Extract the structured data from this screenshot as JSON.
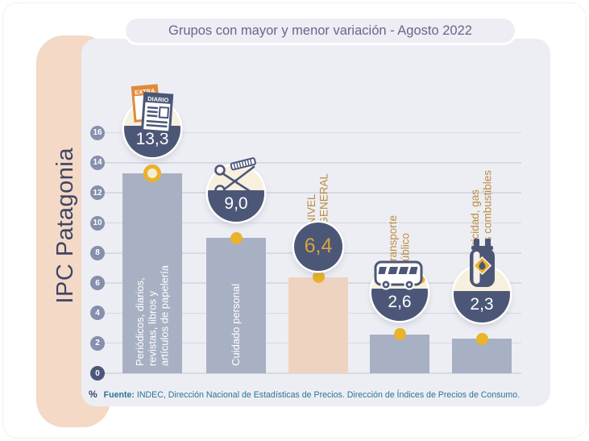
{
  "title": "Grupos con mayor y menor variación - Agosto 2022",
  "sidebar_label": "IPC Patagonia",
  "footer": {
    "percent_symbol": "%",
    "source_label": "Fuente:",
    "source_text": "INDEC, Dirección Nacional de Estadísticas de Precios. Dirección de Índices de Precios de Consumo."
  },
  "colors": {
    "panel_bg": "#edeef4",
    "sidebar_peach": "#f3d9c6",
    "bar_gray": "#a8b1c3",
    "bar_peach": "#eed3c1",
    "badge_navy": "#4c5778",
    "badge_cream": "#f8f0de",
    "marker_yellow": "#e9b32a",
    "label_orange": "#bd8c3e",
    "tick_gray": "#8690ac",
    "tick_zero": "#4b567a",
    "title_text": "#66678f",
    "source_text": "#2c7492"
  },
  "chart_data": {
    "type": "bar",
    "title": "Grupos con mayor y menor variación - Agosto 2022",
    "region": "IPC Patagonia",
    "period": "Agosto 2022",
    "unit": "%",
    "ylim": [
      0,
      16
    ],
    "yticks": [
      0,
      2,
      4,
      6,
      8,
      10,
      12,
      14,
      16
    ],
    "grid": true,
    "legend_position": "none",
    "bars": [
      {
        "category": "Periódicos, diarios, revistas, libros y artículos de papelería",
        "value": 13.3,
        "value_label": "13,3",
        "bar_label": "Periódicos, diarios,\nrevistas, libros y\nartículos de papelería",
        "icon": "newspaper-icon",
        "marker": "ring",
        "bar_style": "gray"
      },
      {
        "category": "Cuidado personal",
        "value": 9.0,
        "value_label": "9,0",
        "bar_label": "Cuidado personal",
        "icon": "scissors-icon",
        "marker": "dot",
        "bar_style": "gray"
      },
      {
        "category": "Nivel general",
        "value": 6.4,
        "value_label": "6,4",
        "top_label": "NIVEL\nGENERAL",
        "icon": "none",
        "marker": "dot",
        "bar_style": "peach"
      },
      {
        "category": "Transporte público",
        "value": 2.6,
        "value_label": "2,6",
        "top_label": "Transporte\npúblico",
        "icon": "bus-icon",
        "marker": "dot",
        "bar_style": "gray"
      },
      {
        "category": "Electricidad, gas y otros combustibles",
        "value": 2.3,
        "value_label": "2,3",
        "top_label": "Electricidad, gas\ny otros combustibles",
        "icon": "gas-cylinder-icon",
        "marker": "dot",
        "bar_style": "gray"
      }
    ],
    "icon_texts": {
      "extra": "EXTRA",
      "diario": "DIARIO"
    }
  }
}
